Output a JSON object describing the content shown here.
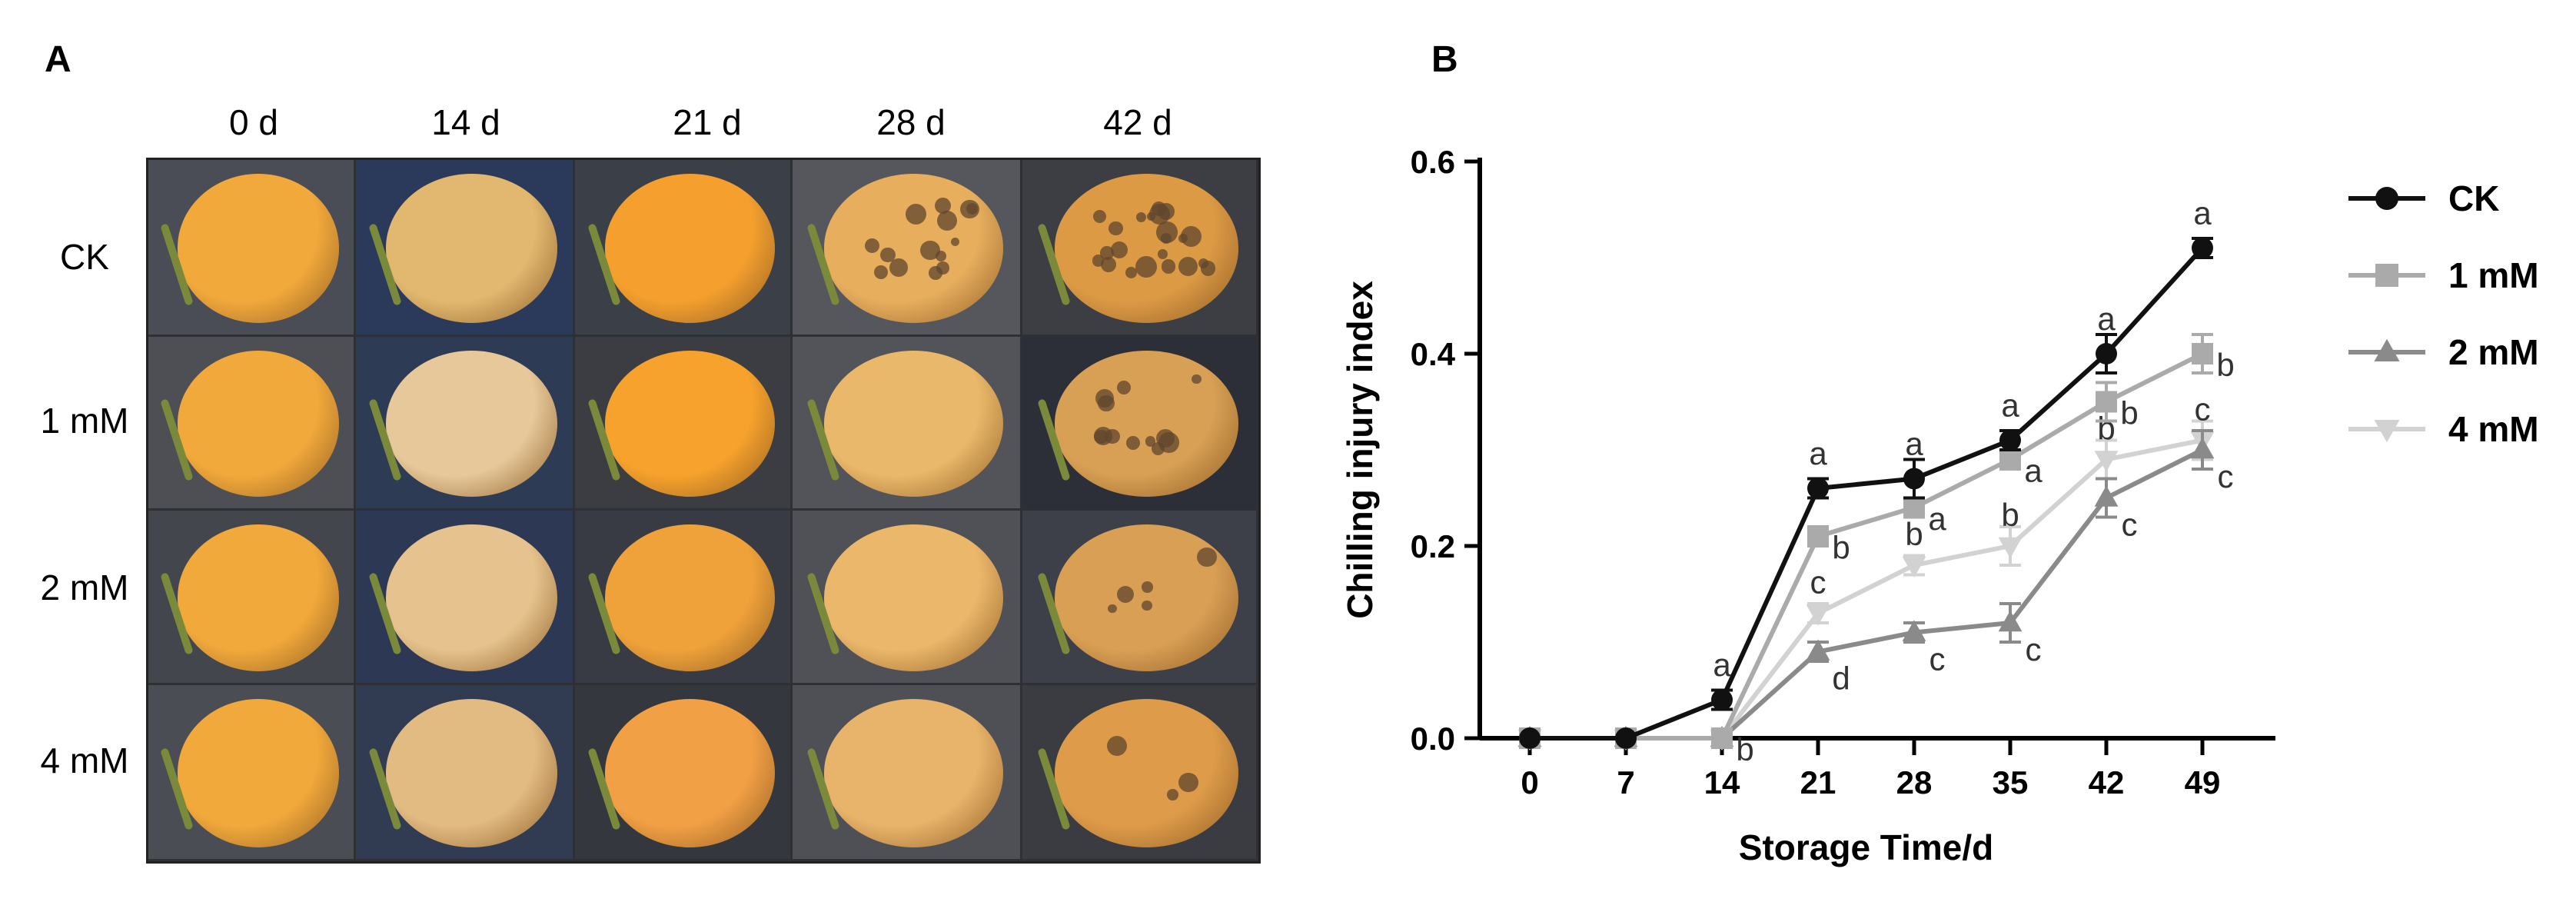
{
  "panel_a": {
    "label": "A",
    "columns": [
      "0 d",
      "14 d",
      "21 d",
      "28 d",
      "42 d"
    ],
    "rows": [
      "CK",
      "1 mM",
      "2 mM",
      "4 mM"
    ]
  },
  "panel_b": {
    "label": "B"
  },
  "chart_data": {
    "type": "line",
    "xlabel": "Storage Time/d",
    "ylabel": "Chilling injury index",
    "x": [
      0,
      7,
      14,
      21,
      28,
      35,
      42,
      49
    ],
    "xlim": [
      0,
      49
    ],
    "ylim": [
      0,
      0.6
    ],
    "yticks": [
      "0.0",
      "0.2",
      "0.4",
      "0.6"
    ],
    "grid": false,
    "legend_position": "right",
    "series": [
      {
        "name": "CK",
        "color": "#111111",
        "marker": "circle",
        "values": [
          0,
          0,
          0.04,
          0.26,
          0.27,
          0.31,
          0.4,
          0.51
        ],
        "errors": [
          0,
          0,
          0.01,
          0.01,
          0.02,
          0.01,
          0.02,
          0.01
        ],
        "letters": [
          "",
          "",
          "a",
          "a",
          "a",
          "a",
          "a",
          "a"
        ]
      },
      {
        "name": "1 mM",
        "color": "#aaaaaa",
        "marker": "square",
        "values": [
          0,
          0,
          0.0,
          0.21,
          0.24,
          0.29,
          0.35,
          0.4
        ],
        "errors": [
          0,
          0,
          0,
          0.01,
          0.01,
          0.01,
          0.02,
          0.02
        ],
        "letters": [
          "",
          "",
          "b",
          "b",
          "a",
          "a",
          "b",
          "b"
        ]
      },
      {
        "name": "2 mM",
        "color": "#8a8a8a",
        "marker": "triangle-up",
        "values": [
          0,
          0,
          0.0,
          0.09,
          0.11,
          0.12,
          0.25,
          0.3
        ],
        "errors": [
          0,
          0,
          0,
          0.01,
          0.01,
          0.02,
          0.02,
          0.02
        ],
        "letters": [
          "",
          "",
          "",
          "d",
          "c",
          "c",
          "c",
          "c"
        ]
      },
      {
        "name": "4 mM",
        "color": "#d2d2d2",
        "marker": "triangle-down",
        "values": [
          0,
          0,
          0.0,
          0.13,
          0.18,
          0.2,
          0.29,
          0.31
        ],
        "errors": [
          0,
          0,
          0,
          0.01,
          0.01,
          0.02,
          0.02,
          0.02
        ],
        "letters": [
          "",
          "",
          "",
          "c",
          "b",
          "b",
          "b",
          "c"
        ]
      }
    ]
  }
}
